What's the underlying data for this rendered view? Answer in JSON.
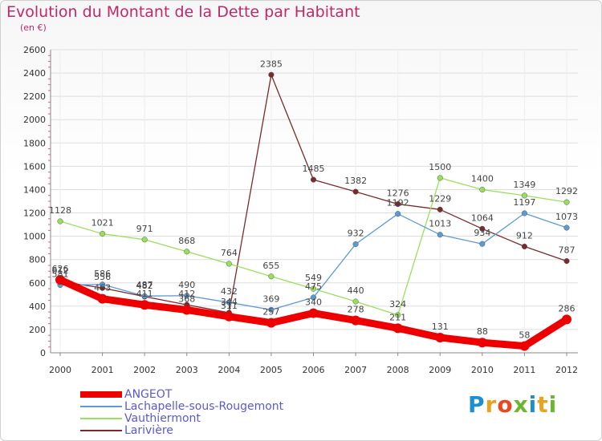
{
  "title": "Evolution du Montant de la Dette par Habitant",
  "subtitle": "(en €)",
  "logo": {
    "text": "Proxiti",
    "letter_colors": [
      "#1d8fd1",
      "#e8a31f",
      "#e8491f",
      "#6cb72f",
      "#1d8fd1",
      "#e8a31f",
      "#6cb72f"
    ]
  },
  "chart_data": {
    "type": "line",
    "title": "Evolution du Montant de la Dette par Habitant",
    "subtitle": "(en €)",
    "x": [
      "2000",
      "2001",
      "2002",
      "2003",
      "2004",
      "2005",
      "2006",
      "2007",
      "2008",
      "2009",
      "2010",
      "2011",
      "2012"
    ],
    "ylim": [
      0,
      2600
    ],
    "yticks": [
      "0",
      "200",
      "400",
      "600",
      "800",
      "1000",
      "1200",
      "1400",
      "1600",
      "1800",
      "2000",
      "2200",
      "2400",
      "2600"
    ],
    "grid": true,
    "legend_position": "bottom-left",
    "series": [
      {
        "name": "ANGEOT",
        "color": "#ee0000",
        "values": [
          626,
          463,
          411,
          368,
          311,
          257,
          340,
          278,
          211,
          131,
          88,
          58,
          286
        ],
        "labels": [
          "626",
          "463",
          "411",
          "368",
          "311",
          "257",
          "340",
          "278",
          "211",
          "131",
          "88",
          "58",
          "286"
        ]
      },
      {
        "name": "Lachapelle-sous-Rougemont",
        "color": "#5b9bd5",
        "values": [
          581,
          586,
          487,
          490,
          432,
          369,
          475,
          932,
          1192,
          1013,
          934,
          1197,
          1073
        ],
        "labels": [
          "581",
          "586",
          "487",
          "490",
          "432",
          "369",
          "475",
          "932",
          "1192",
          "1013",
          "934",
          "1197",
          "1073"
        ]
      },
      {
        "name": "Vauthiermont",
        "color": "#99e05a",
        "values": [
          1128,
          1021,
          971,
          868,
          764,
          655,
          549,
          440,
          324,
          1500,
          1400,
          1349,
          1292
        ],
        "labels": [
          "1128",
          "1021",
          "971",
          "868",
          "764",
          "655",
          "549",
          "440",
          "324",
          "1500",
          "1400",
          "1349",
          "1292"
        ]
      },
      {
        "name": "Larivière",
        "color": "#7b2a2a",
        "values": [
          612,
          556,
          482,
          412,
          344,
          2385,
          1485,
          1382,
          1276,
          1229,
          1064,
          912,
          787
        ],
        "labels": [
          "612",
          "556",
          "482",
          "412",
          "344",
          "2385",
          "1485",
          "1382",
          "1276",
          "1229",
          "1064",
          "912",
          "787"
        ]
      }
    ]
  }
}
